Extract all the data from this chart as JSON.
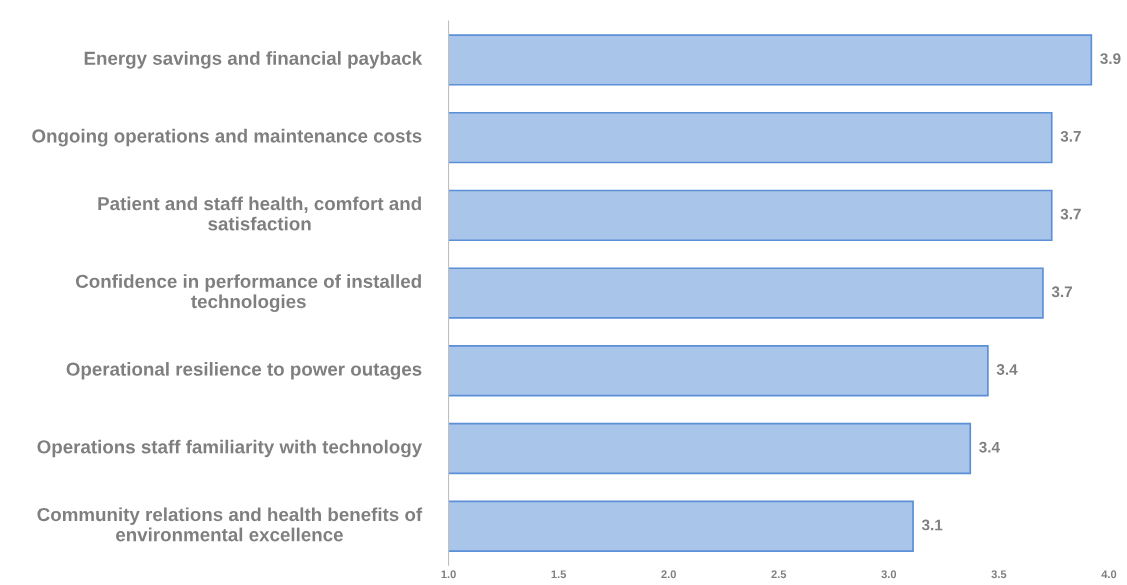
{
  "chart_data": {
    "type": "bar",
    "orientation": "horizontal",
    "categories": [
      "Energy savings and financial payback",
      "Ongoing operations and maintenance costs",
      "Patient and staff health, comfort and satisfaction",
      "Confidence in performance of installed technologies",
      "Operational resilience to power outages",
      "Operations staff familiarity with technology",
      "Community relations and health benefits of environmental excellence"
    ],
    "values": [
      3.92,
      3.74,
      3.74,
      3.7,
      3.45,
      3.37,
      3.11
    ],
    "value_labels": [
      "3.9",
      "3.7",
      "3.7",
      "3.7",
      "3.4",
      "3.4",
      "3.1"
    ],
    "color": "#a9c6ea",
    "xlim": [
      1,
      4
    ],
    "xticks": [
      {
        "value": 1,
        "label": "1.0"
      },
      {
        "value": 1.5,
        "label": "1.5"
      },
      {
        "value": 2,
        "label": "2.0"
      },
      {
        "value": 2.5,
        "label": "2.5"
      },
      {
        "value": 3,
        "label": "3.0"
      },
      {
        "value": 3.5,
        "label": "3.5"
      },
      {
        "value": 4,
        "label": "4.0"
      }
    ],
    "grid": false,
    "legend": false
  }
}
